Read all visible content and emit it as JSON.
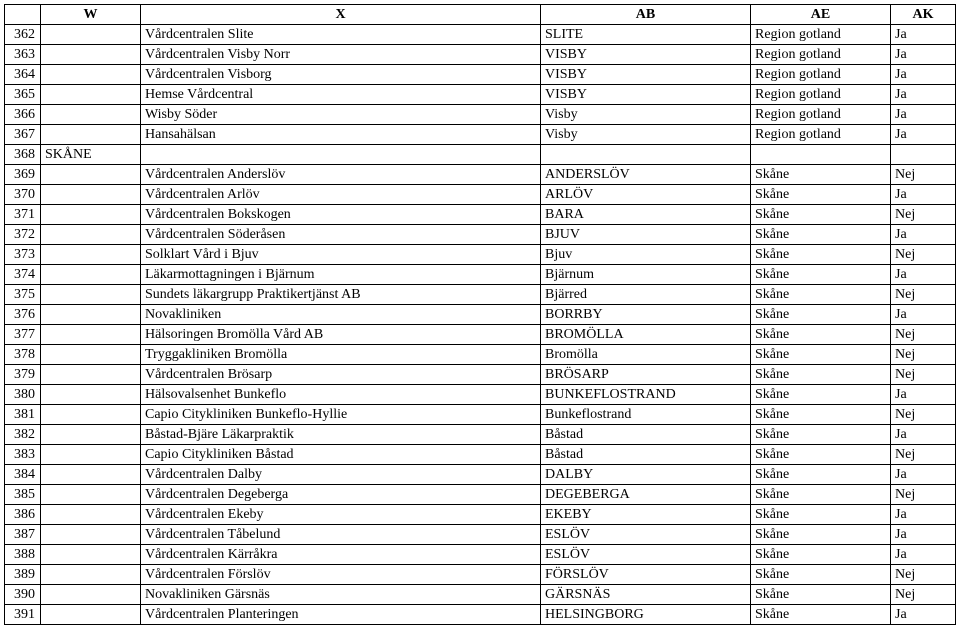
{
  "columns": [
    "W",
    "X",
    "AB",
    "AE",
    "AK"
  ],
  "rows": [
    {
      "n": "362",
      "w": "",
      "x": "Vårdcentralen Slite",
      "ab": "SLITE",
      "ae": "Region gotland",
      "ak": "Ja"
    },
    {
      "n": "363",
      "w": "",
      "x": "Vårdcentralen Visby Norr",
      "ab": "VISBY",
      "ae": "Region gotland",
      "ak": "Ja"
    },
    {
      "n": "364",
      "w": "",
      "x": "Vårdcentralen Visborg",
      "ab": "VISBY",
      "ae": "Region gotland",
      "ak": "Ja"
    },
    {
      "n": "365",
      "w": "",
      "x": "Hemse Vårdcentral",
      "ab": "VISBY",
      "ae": "Region gotland",
      "ak": "Ja"
    },
    {
      "n": "366",
      "w": "",
      "x": "Wisby Söder",
      "ab": "Visby",
      "ae": "Region gotland",
      "ak": "Ja"
    },
    {
      "n": "367",
      "w": "",
      "x": "Hansahälsan",
      "ab": "Visby",
      "ae": "Region gotland",
      "ak": "Ja"
    },
    {
      "n": "368",
      "w": "SKÅNE",
      "x": "",
      "ab": "",
      "ae": "",
      "ak": ""
    },
    {
      "n": "369",
      "w": "",
      "x": "Vårdcentralen Anderslöv",
      "ab": "ANDERSLÖV",
      "ae": "Skåne",
      "ak": "Nej"
    },
    {
      "n": "370",
      "w": "",
      "x": "Vårdcentralen Arlöv",
      "ab": "ARLÖV",
      "ae": "Skåne",
      "ak": "Ja"
    },
    {
      "n": "371",
      "w": "",
      "x": "Vårdcentralen Bokskogen",
      "ab": "BARA",
      "ae": "Skåne",
      "ak": "Nej"
    },
    {
      "n": "372",
      "w": "",
      "x": "Vårdcentralen Söderåsen",
      "ab": "BJUV",
      "ae": "Skåne",
      "ak": "Ja"
    },
    {
      "n": "373",
      "w": "",
      "x": "Solklart Vård i Bjuv",
      "ab": "Bjuv",
      "ae": "Skåne",
      "ak": "Nej"
    },
    {
      "n": "374",
      "w": "",
      "x": "Läkarmottagningen i Bjärnum",
      "ab": "Bjärnum",
      "ae": "Skåne",
      "ak": "Ja"
    },
    {
      "n": "375",
      "w": "",
      "x": "Sundets läkargrupp Praktikertjänst AB",
      "ab": "Bjärred",
      "ae": "Skåne",
      "ak": "Nej"
    },
    {
      "n": "376",
      "w": "",
      "x": "Novakliniken",
      "ab": "BORRBY",
      "ae": "Skåne",
      "ak": "Ja"
    },
    {
      "n": "377",
      "w": "",
      "x": "Hälsoringen Bromölla Vård AB",
      "ab": "BROMÖLLA",
      "ae": "Skåne",
      "ak": "Nej"
    },
    {
      "n": "378",
      "w": "",
      "x": "Tryggakliniken Bromölla",
      "ab": "Bromölla",
      "ae": "Skåne",
      "ak": "Nej"
    },
    {
      "n": "379",
      "w": "",
      "x": "Vårdcentralen Brösarp",
      "ab": "BRÖSARP",
      "ae": "Skåne",
      "ak": "Nej"
    },
    {
      "n": "380",
      "w": "",
      "x": "Hälsovalsenhet Bunkeflo",
      "ab": "BUNKEFLOSTRAND",
      "ae": "Skåne",
      "ak": "Ja"
    },
    {
      "n": "381",
      "w": "",
      "x": "Capio Citykliniken Bunkeflo-Hyllie",
      "ab": "Bunkeflostrand",
      "ae": "Skåne",
      "ak": "Nej"
    },
    {
      "n": "382",
      "w": "",
      "x": "Båstad-Bjäre Läkarpraktik",
      "ab": "Båstad",
      "ae": "Skåne",
      "ak": "Ja"
    },
    {
      "n": "383",
      "w": "",
      "x": "Capio Citykliniken Båstad",
      "ab": "Båstad",
      "ae": "Skåne",
      "ak": "Nej"
    },
    {
      "n": "384",
      "w": "",
      "x": "Vårdcentralen Dalby",
      "ab": "DALBY",
      "ae": "Skåne",
      "ak": "Ja"
    },
    {
      "n": "385",
      "w": "",
      "x": "Vårdcentralen Degeberga",
      "ab": "DEGEBERGA",
      "ae": "Skåne",
      "ak": "Nej"
    },
    {
      "n": "386",
      "w": "",
      "x": "Vårdcentralen Ekeby",
      "ab": "EKEBY",
      "ae": "Skåne",
      "ak": "Ja"
    },
    {
      "n": "387",
      "w": "",
      "x": "Vårdcentralen Tåbelund",
      "ab": "ESLÖV",
      "ae": "Skåne",
      "ak": "Ja"
    },
    {
      "n": "388",
      "w": "",
      "x": "Vårdcentralen Kärråkra",
      "ab": "ESLÖV",
      "ae": "Skåne",
      "ak": "Ja"
    },
    {
      "n": "389",
      "w": "",
      "x": "Vårdcentralen Förslöv",
      "ab": "FÖRSLÖV",
      "ae": "Skåne",
      "ak": "Nej"
    },
    {
      "n": "390",
      "w": "",
      "x": "Novakliniken Gärsnäs",
      "ab": "GÄRSNÄS",
      "ae": "Skåne",
      "ak": "Nej"
    },
    {
      "n": "391",
      "w": "",
      "x": "Vårdcentralen Planteringen",
      "ab": "HELSINGBORG",
      "ae": "Skåne",
      "ak": "Ja"
    }
  ]
}
